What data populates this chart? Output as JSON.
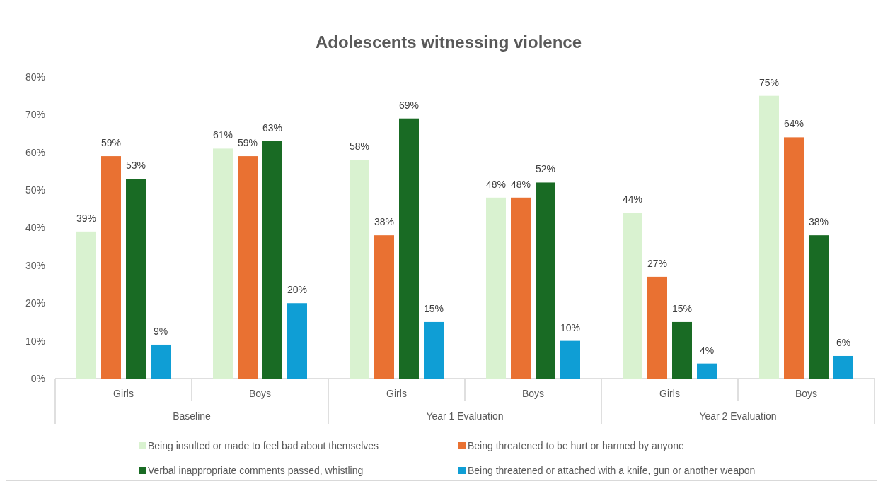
{
  "chart_data": {
    "type": "bar",
    "title": "Adolescents witnessing violence",
    "categories": [
      "Girls",
      "Boys",
      "Girls",
      "Boys",
      "Girls",
      "Boys"
    ],
    "annotations": [
      "Baseline",
      "Year 1 Evaluation",
      "Year 2 Evaluation"
    ],
    "series": [
      {
        "name": "Being insulted or made to feel bad about themselves",
        "color": "#d9f2d0",
        "values": [
          39,
          61,
          58,
          48,
          44,
          75
        ],
        "value_labels": [
          "39%",
          "61%",
          "58%",
          "48%",
          "44%",
          "75%"
        ]
      },
      {
        "name": "Being threatened to be hurt or harmed by anyone",
        "color": "#e97132",
        "values": [
          59,
          59,
          38,
          48,
          27,
          64
        ],
        "value_labels": [
          "59%",
          "59%",
          "38%",
          "48%",
          "27%",
          "64%"
        ]
      },
      {
        "name": "Verbal inappropriate comments passed, whistling",
        "color": "#196b24",
        "values": [
          53,
          63,
          69,
          52,
          15,
          38
        ],
        "value_labels": [
          "53%",
          "63%",
          "69%",
          "52%",
          "15%",
          "38%"
        ]
      },
      {
        "name": "Being threatened or attached with a knife, gun or another weapon",
        "color": "#0f9ed5",
        "values": [
          9,
          20,
          15,
          10,
          4,
          6
        ],
        "value_labels": [
          "9%",
          "20%",
          "15%",
          "10%",
          "4%",
          "6%"
        ]
      }
    ],
    "ylim": [
      0,
      80
    ],
    "yticks": [
      {
        "value": 0,
        "label": "0%"
      },
      {
        "value": 10,
        "label": "10%"
      },
      {
        "value": 20,
        "label": "20%"
      },
      {
        "value": 30,
        "label": "30%"
      },
      {
        "value": 40,
        "label": "40%"
      },
      {
        "value": 50,
        "label": "50%"
      },
      {
        "value": 60,
        "label": "60%"
      },
      {
        "value": 70,
        "label": "70%"
      },
      {
        "value": 80,
        "label": "80%"
      }
    ],
    "legend": "bottom"
  }
}
